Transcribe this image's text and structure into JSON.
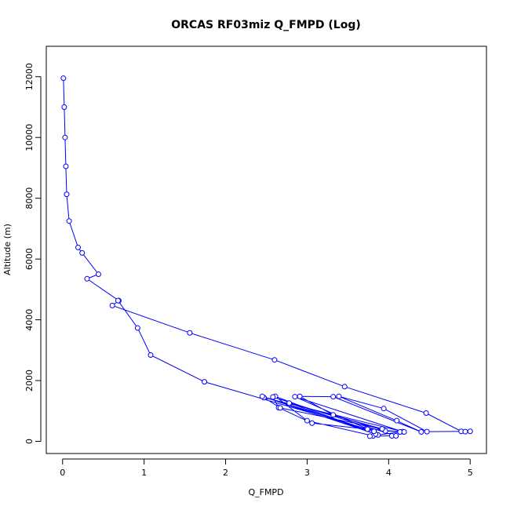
{
  "chart_data": {
    "type": "line",
    "title": "ORCAS RF03miz Q_FMPD (Log)",
    "xlabel": "Q_FMPD",
    "ylabel": "Altitude (m)",
    "xlim": [
      -0.2,
      5.2
    ],
    "ylim": [
      -400,
      13000
    ],
    "xticks": [
      0,
      1,
      2,
      3,
      4,
      5
    ],
    "yticks": [
      0,
      2000,
      4000,
      6000,
      8000,
      10000,
      12000
    ],
    "grid": false,
    "legend": "none",
    "series": [
      {
        "color": "#0000ff",
        "marker": "open-circle",
        "points": [
          [
            0.01,
            11950
          ],
          [
            0.02,
            11000
          ],
          [
            0.03,
            10000
          ],
          [
            0.04,
            9050
          ],
          [
            0.05,
            8130
          ],
          [
            0.08,
            7250
          ],
          [
            0.19,
            6380
          ],
          [
            0.24,
            6200
          ],
          [
            0.44,
            5500
          ],
          [
            0.3,
            5350
          ],
          [
            0.69,
            4630
          ],
          [
            0.61,
            4470
          ],
          [
            1.56,
            3570
          ],
          [
            2.6,
            2680
          ],
          [
            3.46,
            1800
          ],
          [
            4.46,
            930
          ],
          [
            4.89,
            330
          ],
          [
            4.94,
            320
          ],
          [
            5.0,
            330
          ],
          [
            4.47,
            320
          ],
          [
            3.94,
            1080
          ],
          [
            3.39,
            1480
          ],
          [
            4.1,
            680
          ],
          [
            4.4,
            310
          ],
          [
            3.32,
            1470
          ],
          [
            2.91,
            1480
          ],
          [
            3.32,
            870
          ],
          [
            3.96,
            340
          ],
          [
            4.17,
            320
          ],
          [
            2.85,
            1470
          ],
          [
            3.73,
            420
          ],
          [
            4.14,
            310
          ],
          [
            3.87,
            210
          ],
          [
            2.61,
            1480
          ],
          [
            3.0,
            680
          ],
          [
            3.81,
            180
          ],
          [
            3.77,
            170
          ],
          [
            4.04,
            180
          ],
          [
            4.09,
            180
          ],
          [
            2.58,
            1460
          ],
          [
            2.65,
            1110
          ],
          [
            3.06,
            600
          ],
          [
            3.74,
            400
          ],
          [
            4.19,
            310
          ],
          [
            2.47,
            1440
          ],
          [
            2.67,
            1100
          ],
          [
            3.92,
            410
          ],
          [
            2.78,
            1260
          ],
          [
            3.84,
            240
          ],
          [
            2.45,
            1480
          ],
          [
            3.82,
            330
          ],
          [
            1.74,
            1960
          ],
          [
            1.08,
            2840
          ],
          [
            0.92,
            3730
          ],
          [
            0.68,
            4630
          ]
        ]
      }
    ]
  }
}
